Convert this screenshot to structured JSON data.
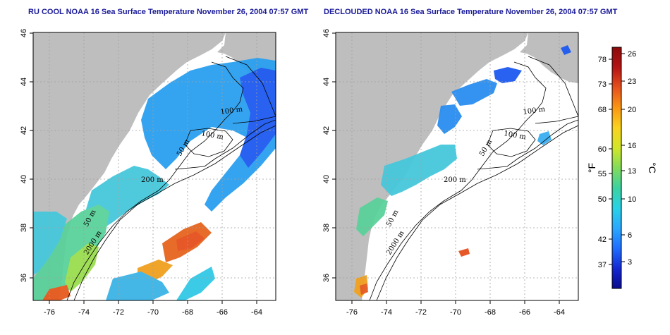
{
  "panels": [
    {
      "id": "left",
      "title": "RU COOL NOAA 16 Sea Surface Temperature November 26, 2004 07:57 GMT",
      "contour_labels": [
        "100 m",
        "100 m",
        "50 m",
        "200 m",
        "50 m",
        "2000 m"
      ]
    },
    {
      "id": "right",
      "title": "DECLOUDED NOAA 16 Sea Surface Temperature November 26, 2004 07:57 GMT",
      "contour_labels": [
        "100 m",
        "100 m",
        "50 m",
        "200 m",
        "50 m",
        "2000 m"
      ]
    }
  ],
  "axes": {
    "x_ticks": [
      "-76",
      "-74",
      "-72",
      "-70",
      "-68",
      "-66",
      "-64"
    ],
    "y_ticks": [
      "36",
      "38",
      "40",
      "42",
      "44",
      "46"
    ]
  },
  "colorbar": {
    "fahrenheit_label": "°F",
    "celsius_label": "°C",
    "fahrenheit_ticks": [
      "78",
      "73",
      "68",
      "60",
      "55",
      "50",
      "42",
      "37"
    ],
    "celsius_ticks": [
      "26",
      "23",
      "20",
      "16",
      "13",
      "10",
      "6",
      "3"
    ],
    "colors": [
      "#0a0a8c",
      "#1428d2",
      "#1e6eff",
      "#2aa8ff",
      "#28d2e6",
      "#3cd2a0",
      "#82dc5a",
      "#d2e628",
      "#fad21e",
      "#fa9614",
      "#e6501e",
      "#b41414",
      "#8c0a0a"
    ]
  },
  "colors": {
    "land": "#bebebe",
    "grid": "#a0a0a0",
    "cold": "#1e50f0",
    "cool": "#32c8e6",
    "mild": "#64d28c",
    "warm": "#e65a1e"
  }
}
